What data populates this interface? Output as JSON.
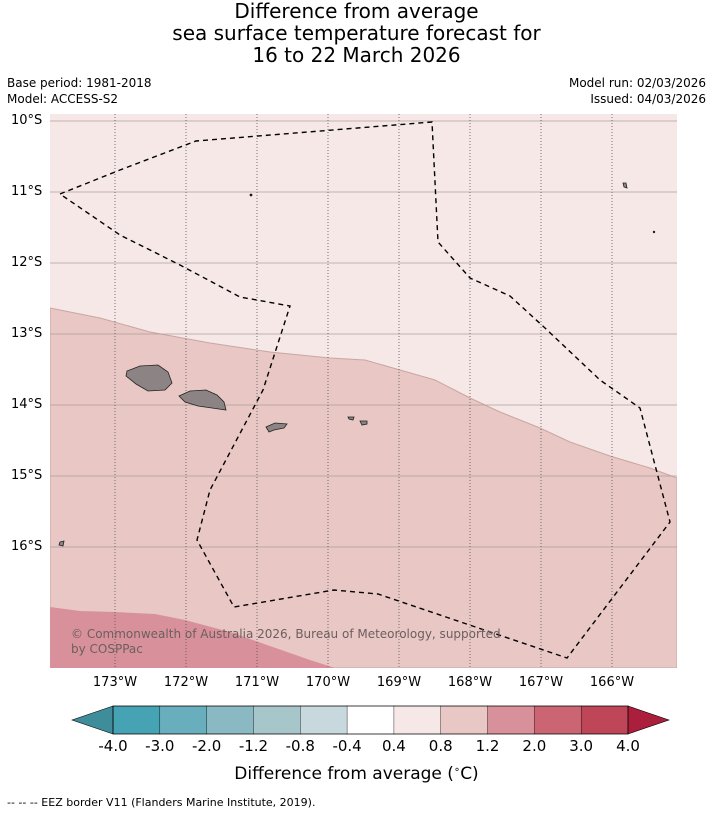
{
  "title": {
    "line1": "Difference from average",
    "line2": "sea surface temperature forecast for",
    "line3": "16 to 22 March 2026"
  },
  "meta": {
    "base_period": "Base period: 1981-2018",
    "model": "Model: ACCESS-S2",
    "model_run": "Model run: 02/03/2026",
    "issued": "Issued: 04/03/2026"
  },
  "map": {
    "lat_labels": [
      "10°S",
      "11°S",
      "12°S",
      "13°S",
      "14°S",
      "15°S",
      "16°S"
    ],
    "lon_labels": [
      "173°W",
      "172°W",
      "171°W",
      "170°W",
      "169°W",
      "168°W",
      "167°W",
      "166°W"
    ],
    "copyright": "© Commonwealth of Australia 2026, Bureau of Meteorology, supported by COSPPac",
    "colors": {
      "band_0_4_0_8": "#f5e8e7",
      "band_0_8_1_2": "#e8c7c4",
      "band_1_2_2_0": "#d8919a",
      "land": "#8c8484"
    }
  },
  "colorbar": {
    "tick_labels": [
      "-4.0",
      "-3.0",
      "-2.0",
      "-1.2",
      "-0.8",
      "-0.4",
      "0.4",
      "0.8",
      "1.2",
      "2.0",
      "3.0",
      "4.0"
    ],
    "colors": [
      "#45a3b3",
      "#69aebd",
      "#8ab8c3",
      "#a7c6ca",
      "#c7d9dc",
      "#ffffff",
      "#f5e8e7",
      "#e8c7c4",
      "#d8919a",
      "#cc6573",
      "#be4656"
    ],
    "under_color": "#3f8c9a",
    "over_color": "#ac1f3c",
    "title": "Difference from average (",
    "title_unit": "∘",
    "title_end": "C)"
  },
  "footer": {
    "legend": "--  --  -- EEZ border V11 (Flanders Marine Institute, 2019)."
  }
}
